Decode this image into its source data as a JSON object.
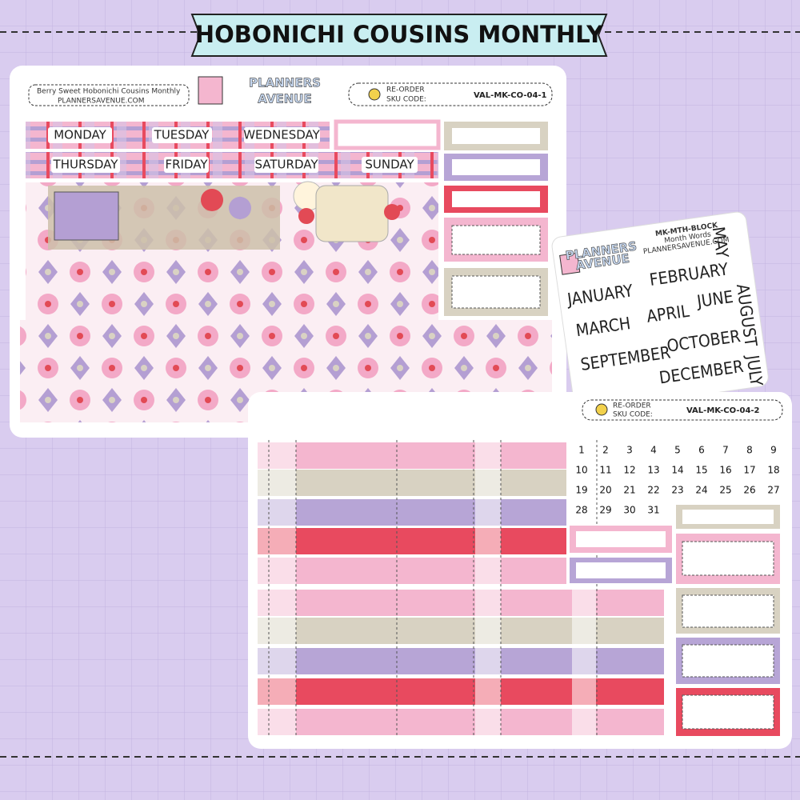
{
  "title": "HOBONICHI COUSINS MONTHLY",
  "sheet1": {
    "name": "Berry Sweet Hobonichi Cousins Monthly",
    "website": "PLANNERSAVENUE.COM",
    "logo": [
      "PLANNERS",
      "AVENUE"
    ],
    "reorder": [
      "RE-ORDER",
      "SKU CODE:"
    ],
    "sku": "VAL-MK-CO-04-1",
    "weekdays": [
      "MONDAY",
      "TUESDAY",
      "WEDNESDAY",
      "THURSDAY",
      "FRIDAY",
      "SATURDAY",
      "SUNDAY"
    ]
  },
  "months_sheet": {
    "logo": [
      "PLANNERS",
      "AVENUE"
    ],
    "code": "MK-MTH-BLOCK",
    "subtitle": "Month Words",
    "website": "PLANNERSAVENUE.COM",
    "months": [
      "JANUARY",
      "FEBRUARY",
      "MARCH",
      "APRIL",
      "JUNE",
      "SEPTEMBER",
      "OCTOBER",
      "DECEMBER",
      "MAY",
      "AUGUST",
      "JULY"
    ]
  },
  "sheet2": {
    "reorder": [
      "RE-ORDER",
      "SKU CODE:"
    ],
    "sku": "VAL-MK-CO-04-2",
    "dates": [
      1,
      2,
      3,
      4,
      5,
      6,
      7,
      8,
      9,
      10,
      11,
      12,
      13,
      14,
      15,
      16,
      17,
      18,
      19,
      20,
      21,
      22,
      23,
      24,
      25,
      26,
      27,
      28,
      29,
      30,
      31
    ]
  }
}
